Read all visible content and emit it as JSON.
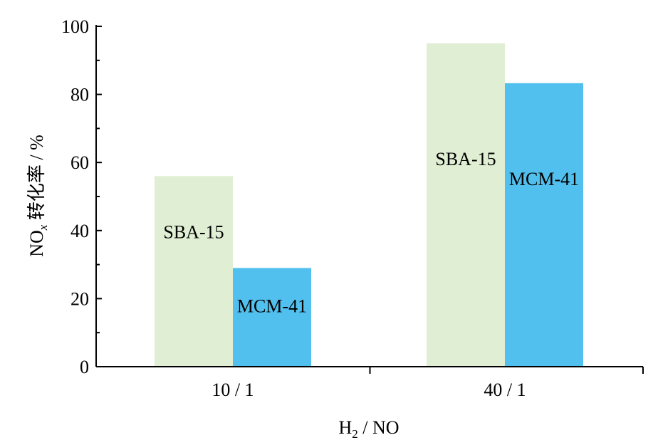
{
  "chart_data": {
    "type": "bar",
    "title": "",
    "categories": [
      "10 / 1",
      "40 / 1"
    ],
    "series": [
      {
        "name": "SBA-15",
        "values": [
          56,
          95
        ],
        "color": "#e0eed3"
      },
      {
        "name": "MCM-41",
        "values": [
          29,
          83.3
        ],
        "color": "#52c0ee"
      }
    ],
    "xlabel": {
      "main": "H",
      "sub": "2",
      "rest": " / NO"
    },
    "ylabel": {
      "main": "NO",
      "sub": "x",
      "rest": " 转化率 / %"
    },
    "ylim": [
      0,
      100
    ],
    "yticks": [
      "0",
      "20",
      "40",
      "60",
      "80",
      "100"
    ],
    "grid": false,
    "legend": "none"
  }
}
